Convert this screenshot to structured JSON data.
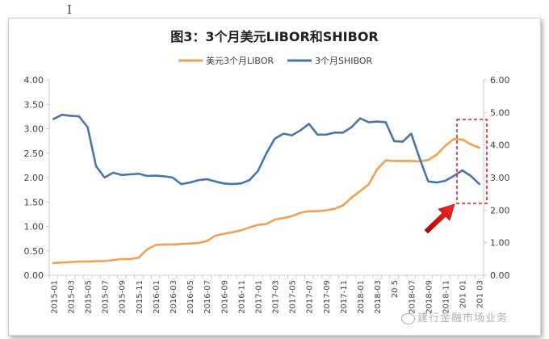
{
  "chart_data": {
    "type": "line",
    "title": "图3：3个月美元LIBOR和SHIBOR",
    "categories": [
      "2015-01",
      "2015-02",
      "2015-03",
      "2015-04",
      "2015-05",
      "2015-06",
      "2015-07",
      "2015-08",
      "2015-09",
      "2015-10",
      "2015-11",
      "2015-12",
      "2016-01",
      "2016-02",
      "2016-03",
      "2016-04",
      "2016-05",
      "2016-06",
      "2016-07",
      "2016-08",
      "2016-09",
      "2016-10",
      "2016-11",
      "2016-12",
      "2017-01",
      "2017-02",
      "2017-03",
      "2017-04",
      "2017-05",
      "2017-06",
      "2017-07",
      "2017-08",
      "2017-09",
      "2017-10",
      "2017-11",
      "2017-12",
      "2018-01",
      "2018-02",
      "2018-03",
      "2018-04",
      "2018-05",
      "2018-06",
      "2018-07",
      "2018-08",
      "2018-09",
      "2018-10",
      "2018-11",
      "2018-12",
      "2019-01",
      "2019-02",
      "2019-03"
    ],
    "xtick_labels": [
      "2015-01",
      "2015-03",
      "2015-05",
      "2015-07",
      "2015-09",
      "2015-11",
      "2016-01",
      "2016-03",
      "2016-05",
      "2016-07",
      "2016-09",
      "2016-11",
      "2017-01",
      "2017-03",
      "2017-05",
      "2017-07",
      "2017-09",
      "2017-11",
      "2018-01",
      "2018-03",
      "2018-05",
      "2018-07",
      "2018-09",
      "2018-11",
      "2019-01",
      "2019-03"
    ],
    "xtick_display": [
      "2015-01",
      "2015-03",
      "2015-05",
      "2015-07",
      "2015-09",
      "2015-11",
      "2016-01",
      "2016-03",
      "2016-05",
      "2016-07",
      "2016-09",
      "2016-11",
      "2017-01",
      "2017-03",
      "2017-05",
      "2017-07",
      "2017-09",
      "2017-11",
      "2018-01",
      "2018-03",
      "20 5",
      "2018-07",
      "2018-09",
      "2018-11",
      "201 01",
      "201 03"
    ],
    "y_left_ticks": [
      "0.00",
      "0.50",
      "1.00",
      "1.50",
      "2.00",
      "2.50",
      "3.00",
      "3.50",
      "4.00"
    ],
    "y_right_ticks": [
      "0.00",
      "1.00",
      "2.00",
      "3.00",
      "4.00",
      "5.00",
      "6.00"
    ],
    "ylim_left": [
      0,
      4
    ],
    "ylim_right": [
      0,
      6
    ],
    "series": [
      {
        "name": "美元3个月LIBOR",
        "axis": "left",
        "color": "#f0a050",
        "values": [
          0.25,
          0.26,
          0.27,
          0.28,
          0.28,
          0.29,
          0.29,
          0.31,
          0.33,
          0.33,
          0.36,
          0.53,
          0.62,
          0.63,
          0.63,
          0.64,
          0.65,
          0.66,
          0.7,
          0.81,
          0.85,
          0.88,
          0.92,
          0.98,
          1.03,
          1.05,
          1.14,
          1.17,
          1.21,
          1.28,
          1.31,
          1.31,
          1.33,
          1.36,
          1.43,
          1.59,
          1.72,
          1.86,
          2.17,
          2.35,
          2.34,
          2.34,
          2.34,
          2.33,
          2.36,
          2.47,
          2.65,
          2.79,
          2.78,
          2.68,
          2.61
        ]
      },
      {
        "name": "3个月SHIBOR",
        "axis": "right",
        "color": "#4a75a8",
        "values": [
          4.8,
          4.93,
          4.9,
          4.88,
          4.55,
          3.35,
          3.0,
          3.15,
          3.08,
          3.1,
          3.12,
          3.05,
          3.06,
          3.04,
          3.0,
          2.8,
          2.85,
          2.92,
          2.95,
          2.88,
          2.82,
          2.8,
          2.82,
          2.92,
          3.2,
          3.75,
          4.2,
          4.35,
          4.3,
          4.45,
          4.65,
          4.32,
          4.32,
          4.38,
          4.38,
          4.55,
          4.82,
          4.7,
          4.72,
          4.7,
          4.12,
          4.1,
          4.35,
          3.58,
          2.88,
          2.85,
          2.9,
          3.05,
          3.22,
          3.05,
          2.8
        ]
      }
    ],
    "legend_position": "top-center",
    "grid": false,
    "annotations": [
      "red dashed box around 2019-01 to 2019-03",
      "red arrow pointing at box"
    ]
  },
  "watermark": "建行金融市场业务",
  "colors": {
    "annotation": "#e02020",
    "axis_text": "#404040",
    "axis_line": "#c8c8c8"
  }
}
